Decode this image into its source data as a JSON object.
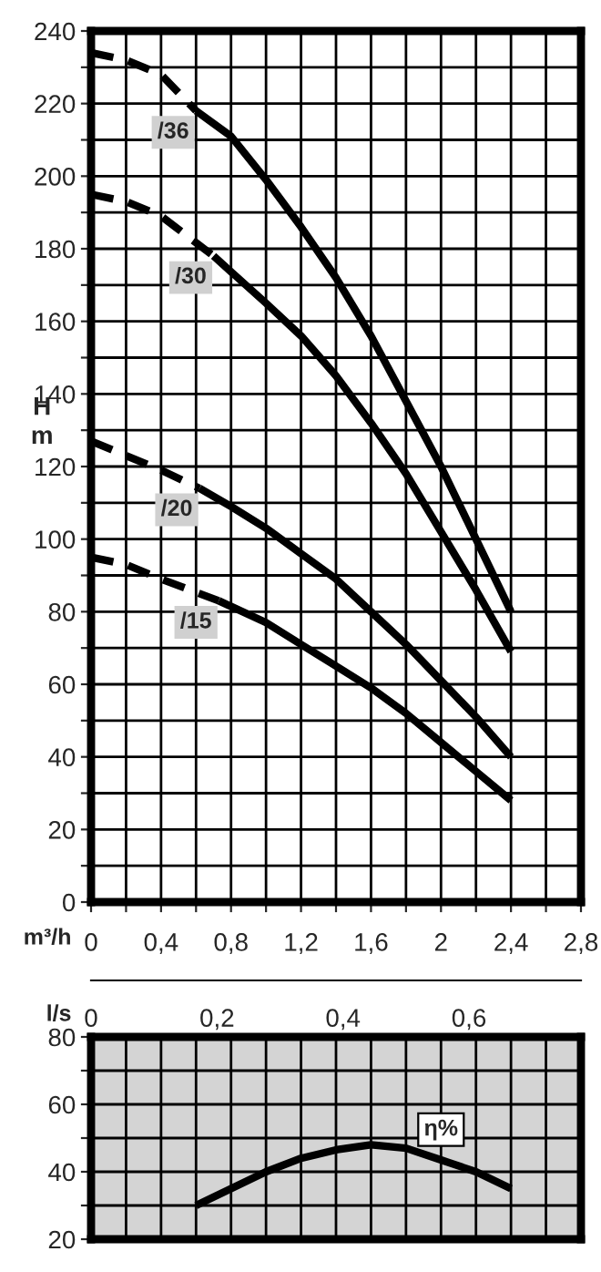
{
  "chart_data": [
    {
      "type": "line",
      "xlabel": "m³/h",
      "ylabel": "H\nm",
      "x2label": "l/s",
      "xlim": [
        0,
        2.8
      ],
      "ylim": [
        0,
        240
      ],
      "x2lim": [
        0,
        0.7778
      ],
      "xticks": [
        0,
        {
          "value": 0.2,
          "label": null
        },
        {
          "value": 0.4,
          "label": "0,4"
        },
        {
          "value": 0.6,
          "label": null
        },
        {
          "value": 0.8,
          "label": "0,8"
        },
        {
          "value": 1.0,
          "label": null
        },
        {
          "value": 1.2,
          "label": "1,2"
        },
        {
          "value": 1.4,
          "label": null
        },
        {
          "value": 1.6,
          "label": "1,6"
        },
        {
          "value": 1.8,
          "label": null
        },
        2,
        {
          "value": 2.2,
          "label": null
        },
        {
          "value": 2.4,
          "label": "2,4"
        },
        {
          "value": 2.6,
          "label": null
        },
        {
          "value": 2.8,
          "label": "2,8"
        }
      ],
      "yticks": [
        0,
        {
          "value": 10,
          "label": null
        },
        20,
        {
          "value": 30,
          "label": null
        },
        40,
        {
          "value": 50,
          "label": null
        },
        60,
        {
          "value": 70,
          "label": null
        },
        80,
        {
          "value": 90,
          "label": null
        },
        100,
        {
          "value": 110,
          "label": null
        },
        120,
        {
          "value": 130,
          "label": null
        },
        140,
        {
          "value": 150,
          "label": null
        },
        160,
        {
          "value": 170,
          "label": null
        },
        180,
        {
          "value": 190,
          "label": null
        },
        200,
        {
          "value": 210,
          "label": null
        },
        220,
        {
          "value": 230,
          "label": null
        },
        240
      ],
      "x2ticks": [
        0,
        {
          "value": 0.2,
          "label": "0,2"
        },
        {
          "value": 0.4,
          "label": "0,4"
        },
        {
          "value": 0.6,
          "label": "0,6"
        }
      ],
      "grid": true,
      "legend": false,
      "marker": "none",
      "series": [
        {
          "color": "#000000",
          "line_style": "dashed",
          "x": [
            0,
            0.2,
            0.4,
            0.6
          ],
          "values": [
            234,
            232,
            228,
            218
          ]
        },
        {
          "name": "/36",
          "color": "#000000",
          "line_style": "solid",
          "x": [
            0.6,
            0.8,
            1.0,
            1.2,
            1.4,
            1.6,
            1.8,
            2.0,
            2.2,
            2.4
          ],
          "values": [
            218,
            211,
            199,
            186,
            172,
            156,
            138,
            120,
            100,
            80
          ]
        },
        {
          "color": "#000000",
          "line_style": "dashed",
          "x": [
            0,
            0.2,
            0.4,
            0.7
          ],
          "values": [
            195,
            193,
            189,
            178
          ]
        },
        {
          "name": "/30",
          "color": "#000000",
          "line_style": "solid",
          "x": [
            0.7,
            1.0,
            1.2,
            1.4,
            1.6,
            1.8,
            2.0,
            2.2,
            2.4
          ],
          "values": [
            178,
            165,
            156,
            145,
            132,
            118,
            102,
            86,
            69
          ]
        },
        {
          "color": "#000000",
          "line_style": "dashed",
          "x": [
            0,
            0.2,
            0.4,
            0.62
          ],
          "values": [
            127,
            123,
            119,
            114
          ]
        },
        {
          "name": "/20",
          "color": "#000000",
          "line_style": "solid",
          "x": [
            0.62,
            0.8,
            1.0,
            1.2,
            1.4,
            1.6,
            1.8,
            2.0,
            2.2,
            2.4
          ],
          "values": [
            114,
            109,
            103,
            96,
            89,
            80,
            71,
            61,
            51,
            40
          ]
        },
        {
          "color": "#000000",
          "line_style": "dashed",
          "x": [
            0,
            0.2,
            0.4,
            0.73
          ],
          "values": [
            95,
            93,
            89,
            83
          ]
        },
        {
          "name": "/15",
          "color": "#000000",
          "line_style": "solid",
          "x": [
            0.73,
            1.0,
            1.2,
            1.4,
            1.6,
            1.8,
            2.0,
            2.2,
            2.4
          ],
          "values": [
            83,
            77,
            71,
            65,
            59,
            52,
            44,
            36,
            28
          ]
        }
      ]
    },
    {
      "type": "line",
      "xlim": [
        0,
        2.8
      ],
      "ylim": [
        20,
        80
      ],
      "xticks": [
        0,
        0.2,
        0.4,
        0.6,
        0.8,
        1.0,
        1.2,
        1.4,
        1.6,
        1.8,
        2.0,
        2.2,
        2.4,
        2.6,
        2.8
      ],
      "yticks": [
        20,
        {
          "value": 30,
          "label": null
        },
        40,
        {
          "value": 50,
          "label": null
        },
        60,
        {
          "value": 70,
          "label": null
        },
        80
      ],
      "tick_labels": "y",
      "grid": true,
      "legend": false,
      "marker": "none",
      "series": [
        {
          "name": "η%",
          "color": "#000000",
          "line_style": "solid",
          "x": [
            0.6,
            0.8,
            1.0,
            1.2,
            1.4,
            1.6,
            1.8,
            2.0,
            2.2,
            2.4
          ],
          "values": [
            30,
            35,
            40,
            44,
            46.5,
            48,
            47,
            43.5,
            40,
            35
          ]
        }
      ]
    }
  ]
}
